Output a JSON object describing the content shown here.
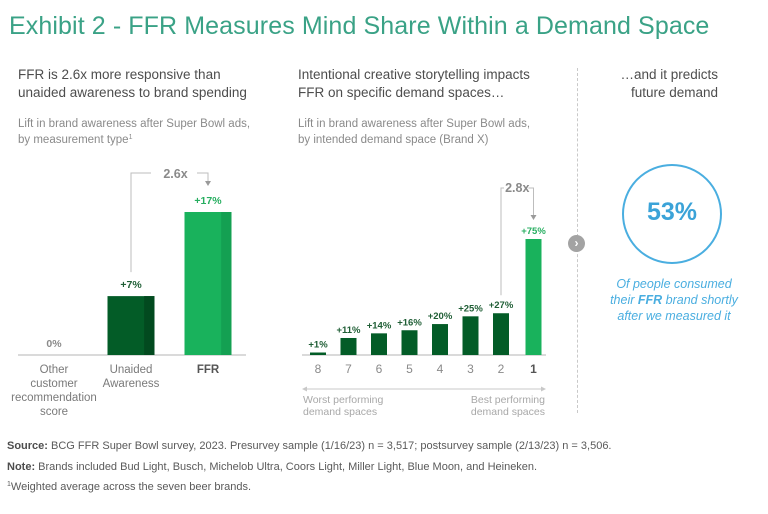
{
  "title": "Exhibit 2 - FFR Measures Mind Share Within a Demand Space",
  "panel1": {
    "heading_line1": "FFR is 2.6x more responsive than",
    "heading_line2": "unaided awareness to brand spending",
    "subhead_line1": "Lift in brand awareness after Super Bowl ads,",
    "subhead_line2": "by measurement type",
    "subhead_footnote": "1"
  },
  "panel2": {
    "heading_line1": "Intentional creative storytelling impacts",
    "heading_line2": "FFR on specific demand spaces…",
    "subhead_line1": "Lift in brand awareness after Super Bowl ads,",
    "subhead_line2": "by intended demand space (Brand X)"
  },
  "panel3": {
    "heading_line1": "…and it predicts",
    "heading_line2": "future demand",
    "stat_value": "53%",
    "caption_line1": "Of people consumed",
    "caption_line2_pre": "their ",
    "caption_line2_bold": "FFR",
    "caption_line2_post": " brand shortly",
    "caption_line3": "after we measured it",
    "next_icon": "chevron-right-icon"
  },
  "colors": {
    "title": "#3aa286",
    "dark_green": "#035c27",
    "dark_green_shade": "#024a1f",
    "bright_green": "#19b25c",
    "bright_green_shade": "#14a052",
    "label_dark": "#1f5e35",
    "label_bright": "#27ae60",
    "blue": "#4aaee0",
    "gray": "#a3a3a3"
  },
  "chart_data": [
    {
      "type": "bar",
      "title": "Lift in brand awareness after Super Bowl ads, by measurement type",
      "categories": [
        "Other customer recommendation score",
        "Unaided Awareness",
        "FFR"
      ],
      "category_lines": [
        [
          "Other",
          "customer",
          "recommendation",
          "score"
        ],
        [
          "Unaided",
          "Awareness"
        ],
        [
          "FFR"
        ]
      ],
      "values": [
        0,
        7,
        17
      ],
      "data_labels": [
        "0%",
        "+7%",
        "+17%"
      ],
      "highlight": [
        false,
        false,
        true
      ],
      "annotation": "2.6x",
      "annotation_from": "Unaided Awareness",
      "annotation_to": "FFR",
      "ylim": [
        0,
        17
      ],
      "grid": false,
      "xlabel": "",
      "ylabel": ""
    },
    {
      "type": "bar",
      "title": "Lift in brand awareness after Super Bowl ads, by intended demand space (Brand X)",
      "categories": [
        "8",
        "7",
        "6",
        "5",
        "4",
        "3",
        "2",
        "1"
      ],
      "values": [
        1,
        11,
        14,
        16,
        20,
        25,
        27,
        75
      ],
      "data_labels": [
        "+1%",
        "+11%",
        "+14%",
        "+16%",
        "+20%",
        "+25%",
        "+27%",
        "+75%"
      ],
      "highlight": [
        false,
        false,
        false,
        false,
        false,
        false,
        false,
        true
      ],
      "annotation": "2.8x",
      "annotation_from": "2",
      "annotation_to": "1",
      "axis_left_note": [
        "Worst performing",
        "demand spaces"
      ],
      "axis_right_note": [
        "Best performing",
        "demand spaces"
      ],
      "ylim": [
        0,
        75
      ],
      "grid": false,
      "xlabel": "",
      "ylabel": ""
    }
  ],
  "footer": {
    "source_label": "Source:",
    "source_text": " BCG FFR Super Bowl survey, 2023. Presurvey sample (1/16/23) n = 3,517; postsurvey sample (2/13/23) n = 3,506.",
    "note_label": "Note:",
    "note_text": " Brands included Bud Light, Busch, Michelob Ultra, Coors Light, Miller Light, Blue Moon, and Heineken.",
    "footnote_marker": "1",
    "footnote_text": "Weighted average across the seven beer brands."
  }
}
